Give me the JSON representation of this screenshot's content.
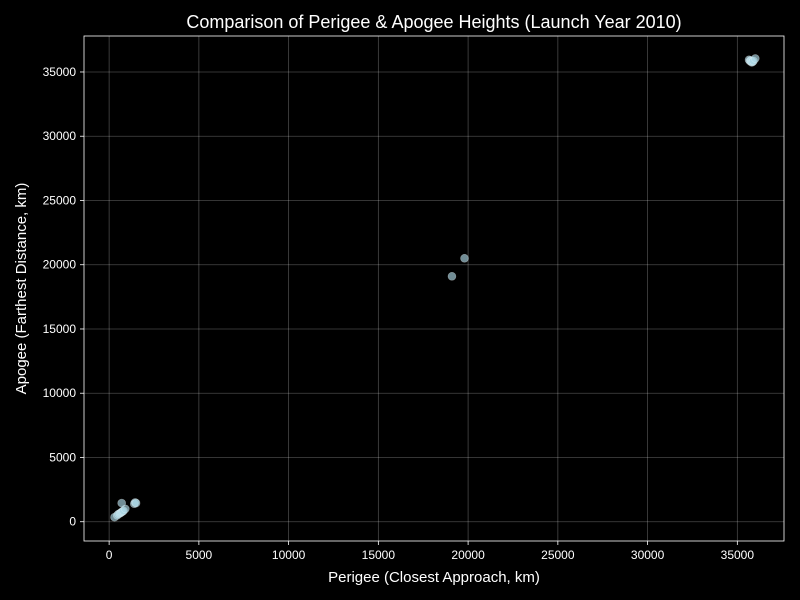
{
  "colors": {
    "background": "#000000",
    "foreground": "#ffffff",
    "marker_fill": "#add8e6",
    "marker_edge": "#ffffff"
  },
  "chart_data": {
    "type": "scatter",
    "title": "Comparison of Perigee & Apogee Heights (Launch Year 2010)",
    "xlabel": "Perigee (Closest Approach, km)",
    "ylabel": "Apogee (Farthest Distance, km)",
    "xlim": [
      -1400,
      37600
    ],
    "ylim": [
      -1500,
      37800
    ],
    "xticks": [
      0,
      5000,
      10000,
      15000,
      20000,
      25000,
      30000,
      35000
    ],
    "yticks": [
      0,
      5000,
      10000,
      15000,
      20000,
      25000,
      30000,
      35000
    ],
    "grid": true,
    "points": [
      {
        "x": 300,
        "y": 350
      },
      {
        "x": 450,
        "y": 500
      },
      {
        "x": 520,
        "y": 600
      },
      {
        "x": 600,
        "y": 650
      },
      {
        "x": 650,
        "y": 700
      },
      {
        "x": 700,
        "y": 750
      },
      {
        "x": 750,
        "y": 800
      },
      {
        "x": 800,
        "y": 850
      },
      {
        "x": 900,
        "y": 1000
      },
      {
        "x": 700,
        "y": 1450
      },
      {
        "x": 1400,
        "y": 1400
      },
      {
        "x": 1450,
        "y": 1500
      },
      {
        "x": 1500,
        "y": 1450
      },
      {
        "x": 19100,
        "y": 19100
      },
      {
        "x": 19800,
        "y": 20500
      },
      {
        "x": 35650,
        "y": 35950
      },
      {
        "x": 35700,
        "y": 35850
      },
      {
        "x": 35750,
        "y": 35900
      },
      {
        "x": 35800,
        "y": 35750
      },
      {
        "x": 35780,
        "y": 35820
      },
      {
        "x": 35850,
        "y": 35780
      },
      {
        "x": 35900,
        "y": 35860
      },
      {
        "x": 36000,
        "y": 36050
      }
    ]
  }
}
